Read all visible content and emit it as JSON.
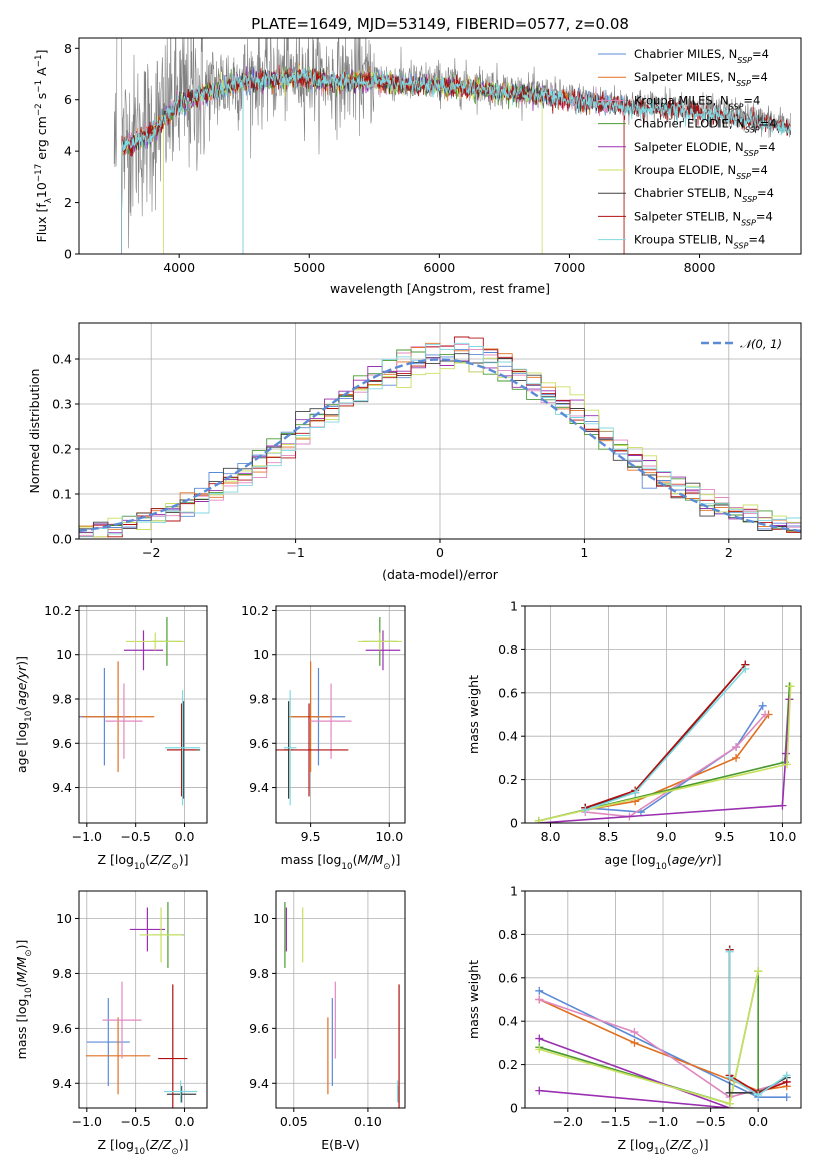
{
  "title": "PLATE=1649, MJD=53149, FIBERID=0577, z=0.08",
  "colors": {
    "chabrier_miles": "#5b8bd6",
    "salpeter_miles": "#e07020",
    "kroupa_miles": "#e088c0",
    "chabrier_elodie": "#4a9a30",
    "salpeter_elodie": "#9a30b0",
    "kroupa_elodie": "#c8e060",
    "chabrier_stelib": "#404040",
    "salpeter_stelib": "#b01010",
    "kroupa_stelib": "#80d8e0",
    "data": "#808080",
    "normal": "#5b8bd6"
  },
  "chart_data": [
    {
      "id": "spectrum",
      "type": "line",
      "xlabel": "wavelength [Angstrom, rest frame]",
      "ylabel": "Flux [f_λ 10^-17 erg cm^-2 s^-1 A^-1]",
      "xlim": [
        3230,
        8780
      ],
      "ylim": [
        0,
        8.4
      ],
      "xticks": [
        4000,
        5000,
        6000,
        7000,
        8000
      ],
      "yticks": [
        0,
        2,
        4,
        6,
        8
      ],
      "legend_position": "upper right",
      "legend": [
        {
          "label": "Chabrier MILES, N",
          "sub": "SSP",
          "suffix": "=4",
          "color_key": "chabrier_miles"
        },
        {
          "label": "Salpeter MILES, N",
          "sub": "SSP",
          "suffix": "=4",
          "color_key": "salpeter_miles"
        },
        {
          "label": "Kroupa MILES, N",
          "sub": "SSP",
          "suffix": "=4",
          "color_key": "kroupa_miles"
        },
        {
          "label": "Chabrier ELODIE, N",
          "sub": "SSP",
          "suffix": "=4",
          "color_key": "chabrier_elodie"
        },
        {
          "label": "Salpeter ELODIE, N",
          "sub": "SSP",
          "suffix": "=4",
          "color_key": "salpeter_elodie"
        },
        {
          "label": "Kroupa ELODIE, N",
          "sub": "SSP",
          "suffix": "=4",
          "color_key": "kroupa_elodie"
        },
        {
          "label": "Chabrier STELIB, N",
          "sub": "SSP",
          "suffix": "=4",
          "color_key": "chabrier_stelib"
        },
        {
          "label": "Salpeter STELIB, N",
          "sub": "SSP",
          "suffix": "=4",
          "color_key": "salpeter_stelib"
        },
        {
          "label": "Kroupa STELIB, N",
          "sub": "SSP",
          "suffix": "=4",
          "color_key": "kroupa_stelib"
        }
      ],
      "model_continuum": [
        [
          3500,
          4.0
        ],
        [
          3600,
          4.4
        ],
        [
          3700,
          4.6
        ],
        [
          3800,
          4.9
        ],
        [
          3900,
          5.5
        ],
        [
          4000,
          6.0
        ],
        [
          4200,
          6.4
        ],
        [
          4400,
          6.7
        ],
        [
          4600,
          6.9
        ],
        [
          4800,
          7.0
        ],
        [
          5000,
          7.0
        ],
        [
          5200,
          6.8
        ],
        [
          5400,
          6.9
        ],
        [
          5600,
          6.8
        ],
        [
          5800,
          6.7
        ],
        [
          6000,
          6.7
        ],
        [
          6200,
          6.6
        ],
        [
          6400,
          6.5
        ],
        [
          6600,
          6.4
        ],
        [
          6800,
          6.3
        ],
        [
          7000,
          6.1
        ],
        [
          7200,
          6.0
        ],
        [
          7400,
          5.9
        ],
        [
          7600,
          5.8
        ],
        [
          7800,
          5.8
        ],
        [
          8000,
          5.6
        ],
        [
          8200,
          5.5
        ],
        [
          8400,
          5.3
        ],
        [
          8600,
          5.1
        ],
        [
          8700,
          5.0
        ]
      ]
    },
    {
      "id": "residuals",
      "type": "step",
      "xlabel": "(data-model)/error",
      "ylabel": "Normed distribution",
      "xlim": [
        -2.5,
        2.5
      ],
      "ylim": [
        0,
        0.48
      ],
      "xticks": [
        -2,
        -1,
        0,
        1,
        2
      ],
      "xticklabels": [
        "−2",
        "−1",
        "0",
        "1",
        "2"
      ],
      "yticks": [
        0.0,
        0.1,
        0.2,
        0.3,
        0.4
      ],
      "yticklabels": [
        "0.0",
        "0.1",
        "0.2",
        "0.3",
        "0.4"
      ],
      "legend": [
        {
          "label": "𝒩(0, 1)",
          "color_key": "normal",
          "style": "dashed"
        }
      ],
      "bin_edges_start": -2.5,
      "bin_width": 0.1
    },
    {
      "id": "age_vs_Z",
      "type": "errorbar",
      "xlabel": "Z [log10(Z/Z⊙)]",
      "ylabel": "age  [log10(age/yr)]",
      "xlim": [
        -1.08,
        0.23
      ],
      "ylim": [
        9.24,
        10.22
      ],
      "xticks": [
        -1.0,
        -0.5,
        0.0
      ],
      "xticklabels": [
        "−1.0",
        "−0.5",
        "0.0"
      ],
      "yticks": [
        9.4,
        9.6,
        9.8,
        10.0,
        10.2
      ],
      "points": [
        {
          "c": "chabrier_miles",
          "x": -0.82,
          "xe": 0.27,
          "y": 9.72,
          "ye": 0.22
        },
        {
          "c": "salpeter_miles",
          "x": -0.68,
          "xe": 0.37,
          "y": 9.72,
          "ye": 0.25
        },
        {
          "c": "kroupa_miles",
          "x": -0.62,
          "xe": 0.19,
          "y": 9.7,
          "ye": 0.17
        },
        {
          "c": "chabrier_elodie",
          "x": -0.18,
          "xe": 0.15,
          "y": 10.06,
          "ye": 0.11
        },
        {
          "c": "salpeter_elodie",
          "x": -0.42,
          "xe": 0.2,
          "y": 10.02,
          "ye": 0.09
        },
        {
          "c": "kroupa_elodie",
          "x": -0.3,
          "xe": 0.3,
          "y": 10.06,
          "ye": 0.04
        },
        {
          "c": "chabrier_stelib",
          "x": -0.01,
          "xe": 0.17,
          "y": 9.57,
          "ye": 0.22
        },
        {
          "c": "salpeter_stelib",
          "x": -0.03,
          "xe": 0.15,
          "y": 9.57,
          "ye": 0.21
        },
        {
          "c": "kroupa_stelib",
          "x": -0.02,
          "xe": 0.18,
          "y": 9.58,
          "ye": 0.26
        }
      ]
    },
    {
      "id": "age_vs_mass",
      "type": "errorbar",
      "xlabel": "mass [log10(M/M⊙)]",
      "ylabel": "",
      "xlim": [
        9.28,
        10.1
      ],
      "ylim": [
        9.24,
        10.22
      ],
      "xticks": [
        9.5,
        10.0
      ],
      "xticklabels": [
        "9.5",
        "10.0"
      ],
      "yticks": [
        9.4,
        9.6,
        9.8,
        10.0,
        10.2
      ],
      "points": [
        {
          "c": "chabrier_miles",
          "x": 9.55,
          "xe": 0.17,
          "y": 9.72,
          "ye": 0.22
        },
        {
          "c": "salpeter_miles",
          "x": 9.5,
          "xe": 0.14,
          "y": 9.72,
          "ye": 0.25
        },
        {
          "c": "kroupa_miles",
          "x": 9.63,
          "xe": 0.13,
          "y": 9.7,
          "ye": 0.17
        },
        {
          "c": "chabrier_elodie",
          "x": 9.94,
          "xe": 0.11,
          "y": 10.06,
          "ye": 0.11
        },
        {
          "c": "salpeter_elodie",
          "x": 9.96,
          "xe": 0.11,
          "y": 10.02,
          "ye": 0.09
        },
        {
          "c": "kroupa_elodie",
          "x": 9.94,
          "xe": 0.14,
          "y": 10.06,
          "ye": 0.04
        },
        {
          "c": "chabrier_stelib",
          "x": 9.36,
          "xe": 0.03,
          "y": 9.57,
          "ye": 0.22
        },
        {
          "c": "salpeter_stelib",
          "x": 9.49,
          "xe": 0.25,
          "y": 9.57,
          "ye": 0.21
        },
        {
          "c": "kroupa_stelib",
          "x": 9.37,
          "xe": 0.04,
          "y": 9.58,
          "ye": 0.26
        }
      ]
    },
    {
      "id": "weight_vs_age",
      "type": "line",
      "xlabel": "age  [log10(age/yr)]",
      "ylabel": "mass weight",
      "xlim": [
        7.78,
        10.16
      ],
      "ylim": [
        0,
        1.0
      ],
      "xticks": [
        8.0,
        8.5,
        9.0,
        9.5,
        10.0
      ],
      "xticklabels": [
        "8.0",
        "8.5",
        "9.0",
        "9.5",
        "10.0"
      ],
      "yticks": [
        0.0,
        0.2,
        0.4,
        0.6,
        0.8,
        1.0
      ],
      "series": [
        {
          "c": "chabrier_miles",
          "pts": [
            [
              8.3,
              0.07
            ],
            [
              8.78,
              0.05
            ],
            [
              9.6,
              0.35
            ],
            [
              9.83,
              0.54
            ]
          ]
        },
        {
          "c": "salpeter_miles",
          "pts": [
            [
              8.3,
              0.06
            ],
            [
              8.73,
              0.1
            ],
            [
              9.6,
              0.3
            ],
            [
              9.88,
              0.5
            ]
          ]
        },
        {
          "c": "kroupa_miles",
          "pts": [
            [
              8.3,
              0.05
            ],
            [
              8.68,
              0.03
            ],
            [
              9.6,
              0.35
            ],
            [
              9.85,
              0.5
            ]
          ]
        },
        {
          "c": "chabrier_elodie",
          "pts": [
            [
              7.9,
              0.01
            ],
            [
              10.02,
              0.28
            ],
            [
              10.06,
              0.63
            ]
          ]
        },
        {
          "c": "salpeter_elodie",
          "pts": [
            [
              7.9,
              0.0
            ],
            [
              10.0,
              0.08
            ],
            [
              10.03,
              0.32
            ],
            [
              10.06,
              0.57
            ]
          ]
        },
        {
          "c": "kroupa_elodie",
          "pts": [
            [
              7.9,
              0.01
            ],
            [
              10.04,
              0.27
            ],
            [
              10.07,
              0.63
            ]
          ]
        },
        {
          "c": "chabrier_stelib",
          "pts": [
            [
              8.3,
              0.07
            ],
            [
              8.73,
              0.14
            ],
            [
              9.68,
              0.73
            ]
          ]
        },
        {
          "c": "salpeter_stelib",
          "pts": [
            [
              8.3,
              0.07
            ],
            [
              8.73,
              0.15
            ],
            [
              9.68,
              0.73
            ]
          ]
        },
        {
          "c": "kroupa_stelib",
          "pts": [
            [
              8.3,
              0.06
            ],
            [
              8.73,
              0.14
            ],
            [
              9.68,
              0.71
            ]
          ]
        }
      ]
    },
    {
      "id": "mass_vs_Z",
      "type": "errorbar",
      "xlabel": "Z [log10(Z/Z⊙)]",
      "ylabel": "mass [log10(M/M⊙)]",
      "xlim": [
        -1.08,
        0.23
      ],
      "ylim": [
        9.31,
        10.1
      ],
      "xticks": [
        -1.0,
        -0.5,
        0.0
      ],
      "xticklabels": [
        "−1.0",
        "−0.5",
        "0.0"
      ],
      "yticks": [
        9.4,
        9.6,
        9.8,
        10.0
      ],
      "points": [
        {
          "c": "chabrier_miles",
          "x": -0.78,
          "xe": 0.22,
          "y": 9.55,
          "ye": 0.16
        },
        {
          "c": "salpeter_miles",
          "x": -0.68,
          "xe": 0.33,
          "y": 9.5,
          "ye": 0.14
        },
        {
          "c": "kroupa_miles",
          "x": -0.64,
          "xe": 0.2,
          "y": 9.63,
          "ye": 0.14
        },
        {
          "c": "chabrier_elodie",
          "x": -0.17,
          "xe": 0.16,
          "y": 9.94,
          "ye": 0.12
        },
        {
          "c": "salpeter_elodie",
          "x": -0.38,
          "xe": 0.18,
          "y": 9.96,
          "ye": 0.08
        },
        {
          "c": "kroupa_elodie",
          "x": -0.24,
          "xe": 0.22,
          "y": 9.94,
          "ye": 0.1
        },
        {
          "c": "chabrier_stelib",
          "x": -0.03,
          "xe": 0.15,
          "y": 9.36,
          "ye": 0.03
        },
        {
          "c": "salpeter_stelib",
          "x": -0.12,
          "xe": 0.15,
          "y": 9.49,
          "ye": 0.27
        },
        {
          "c": "kroupa_stelib",
          "x": -0.04,
          "xe": 0.17,
          "y": 9.37,
          "ye": 0.04
        }
      ]
    },
    {
      "id": "mass_vs_ebv",
      "type": "errorbar",
      "xlabel": "E(B-V)",
      "ylabel": "",
      "xlim": [
        0.038,
        0.125
      ],
      "ylim": [
        9.31,
        10.1
      ],
      "xticks": [
        0.05,
        0.1
      ],
      "xticklabels": [
        "0.05",
        "0.10"
      ],
      "yticks": [
        9.4,
        9.6,
        9.8,
        10.0
      ],
      "points": [
        {
          "c": "chabrier_miles",
          "x": 0.076,
          "y": 9.55,
          "ye": 0.16
        },
        {
          "c": "salpeter_miles",
          "x": 0.073,
          "y": 9.5,
          "ye": 0.14
        },
        {
          "c": "kroupa_miles",
          "x": 0.078,
          "y": 9.63,
          "ye": 0.14
        },
        {
          "c": "chabrier_elodie",
          "x": 0.044,
          "y": 9.94,
          "ye": 0.12
        },
        {
          "c": "salpeter_elodie",
          "x": 0.045,
          "y": 9.96,
          "ye": 0.08
        },
        {
          "c": "kroupa_elodie",
          "x": 0.056,
          "y": 9.94,
          "ye": 0.1
        },
        {
          "c": "chabrier_stelib",
          "x": 0.12,
          "y": 9.36,
          "ye": 0.03
        },
        {
          "c": "salpeter_stelib",
          "x": 0.121,
          "y": 9.49,
          "ye": 0.27
        },
        {
          "c": "kroupa_stelib",
          "x": 0.12,
          "y": 9.37,
          "ye": 0.04
        }
      ]
    },
    {
      "id": "weight_vs_Z",
      "type": "line",
      "xlabel": "Z [log10(Z/Z⊙)]",
      "ylabel": "mass weight",
      "xlim": [
        -2.45,
        0.45
      ],
      "ylim": [
        0,
        1.0
      ],
      "xticks": [
        -2.0,
        -1.5,
        -1.0,
        -0.5,
        0.0
      ],
      "xticklabels": [
        "−2.0",
        "−1.5",
        "−1.0",
        "−0.5",
        "0.0"
      ],
      "yticks": [
        0.0,
        0.2,
        0.4,
        0.6,
        0.8,
        1.0
      ],
      "series": [
        {
          "c": "chabrier_miles",
          "pts": [
            [
              -2.3,
              0.54
            ],
            [
              0.0,
              0.05
            ],
            [
              0.3,
              0.05
            ]
          ]
        },
        {
          "c": "salpeter_miles",
          "pts": [
            [
              -2.3,
              0.5
            ],
            [
              -1.3,
              0.3
            ],
            [
              0.0,
              0.08
            ],
            [
              0.3,
              0.1
            ]
          ]
        },
        {
          "c": "kroupa_miles",
          "pts": [
            [
              -2.3,
              0.5
            ],
            [
              -1.3,
              0.35
            ],
            [
              -0.3,
              0.05
            ],
            [
              0.3,
              0.12
            ]
          ]
        },
        {
          "c": "chabrier_elodie",
          "pts": [
            [
              -2.3,
              0.28
            ],
            [
              -0.3,
              0.02
            ],
            [
              0.0,
              0.63
            ],
            [
              0.0,
              0.08
            ]
          ]
        },
        {
          "c": "salpeter_elodie",
          "pts": [
            [
              -2.3,
              0.08
            ],
            [
              -0.3,
              0.0
            ],
            [
              -2.3,
              0.32
            ]
          ]
        },
        {
          "c": "kroupa_elodie",
          "pts": [
            [
              -2.3,
              0.27
            ],
            [
              -0.3,
              0.02
            ],
            [
              0.0,
              0.63
            ]
          ]
        },
        {
          "c": "chabrier_stelib",
          "pts": [
            [
              -0.3,
              0.73
            ],
            [
              -0.3,
              0.07
            ],
            [
              0.0,
              0.07
            ],
            [
              0.3,
              0.14
            ]
          ]
        },
        {
          "c": "salpeter_stelib",
          "pts": [
            [
              -0.3,
              0.73
            ],
            [
              -0.3,
              0.15
            ],
            [
              0.0,
              0.07
            ],
            [
              0.3,
              0.12
            ]
          ]
        },
        {
          "c": "kroupa_stelib",
          "pts": [
            [
              -0.3,
              0.72
            ],
            [
              -0.3,
              0.14
            ],
            [
              0.0,
              0.06
            ],
            [
              0.3,
              0.15
            ]
          ]
        }
      ]
    }
  ]
}
